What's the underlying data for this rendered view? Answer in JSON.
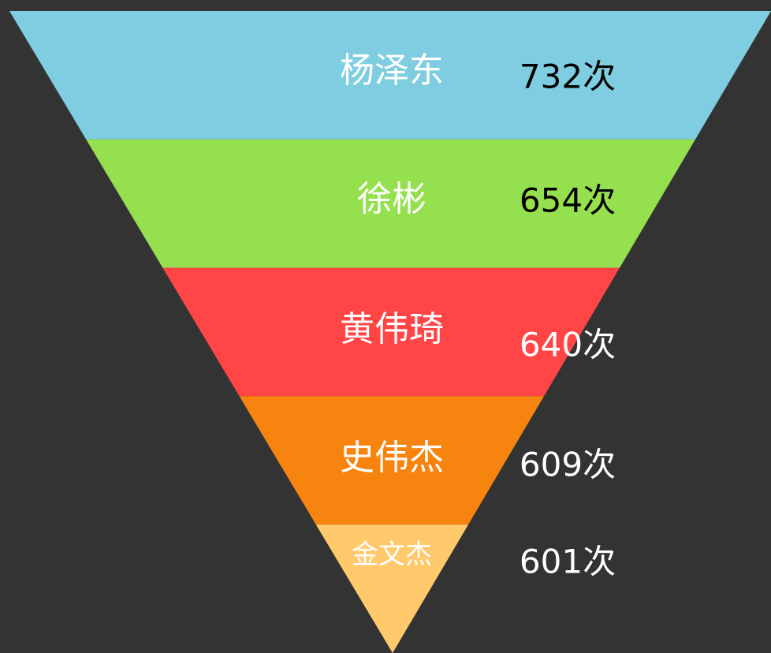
{
  "chart_data": {
    "type": "funnel",
    "categories": [
      "杨泽东",
      "徐彬",
      "黄伟琦",
      "史伟杰",
      "金文杰"
    ],
    "values": [
      732,
      654,
      640,
      609,
      601
    ],
    "value_labels": [
      "732次",
      "654次",
      "640次",
      "609次",
      "601次"
    ],
    "colors": [
      "#7fcde0",
      "#95e04f",
      "#ff4545",
      "#f6840f",
      "#ffc96c"
    ]
  }
}
